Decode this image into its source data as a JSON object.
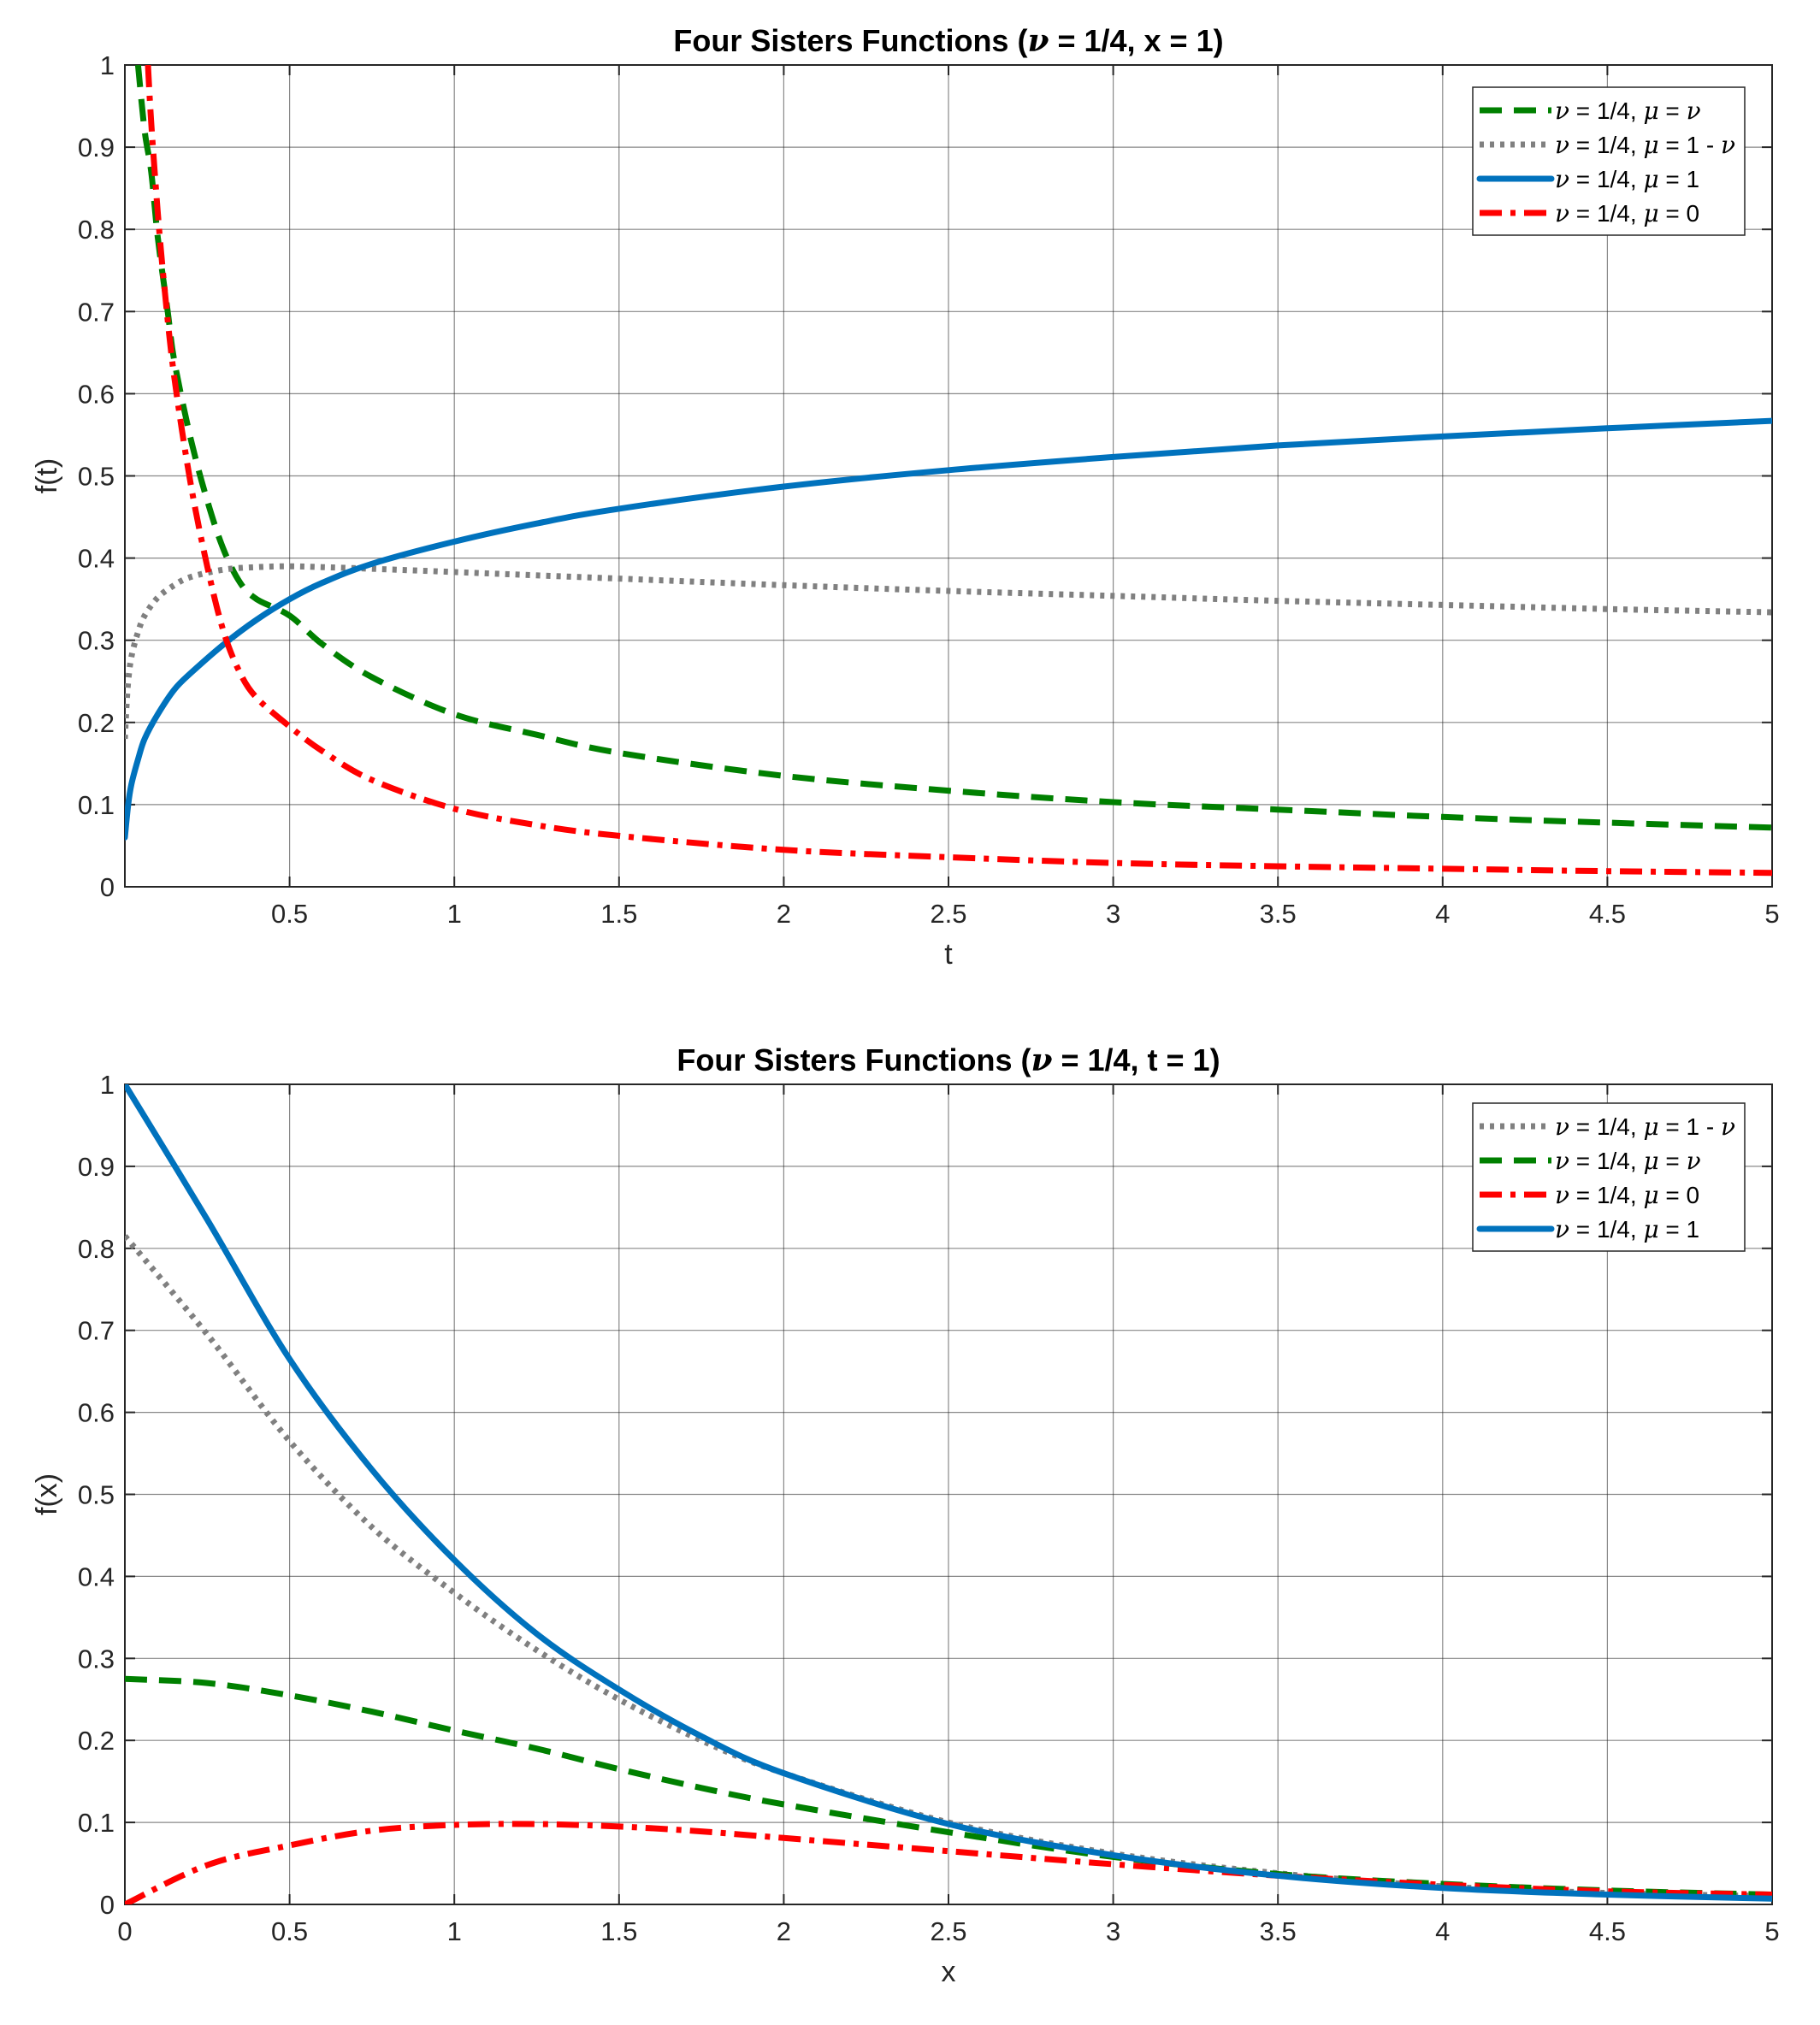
{
  "chart_data": [
    {
      "type": "line",
      "title_prefix": "Four Sisters Functions (",
      "title_nu": "ν",
      "title_suffix": " = 1/4, x = 1)",
      "xlabel": "t",
      "ylabel": "f(t)",
      "xlim": [
        0,
        5
      ],
      "ylim": [
        0,
        1
      ],
      "xticks": [
        "0.5",
        "1",
        "1.5",
        "2",
        "2.5",
        "3",
        "3.5",
        "4",
        "4.5",
        "5"
      ],
      "xtick_values": [
        0.5,
        1,
        1.5,
        2,
        2.5,
        3,
        3.5,
        4,
        4.5,
        5
      ],
      "yticks": [
        "0",
        "0.1",
        "0.2",
        "0.3",
        "0.4",
        "0.5",
        "0.6",
        "0.7",
        "0.8",
        "0.9",
        "1"
      ],
      "ytick_values": [
        0,
        0.1,
        0.2,
        0.3,
        0.4,
        0.5,
        0.6,
        0.7,
        0.8,
        0.9,
        1
      ],
      "grid": true,
      "legend_position": "top-right",
      "series": [
        {
          "key": "mu-nu",
          "legend": [
            "ν",
            " = 1/4, ",
            "μ",
            " = ",
            "ν"
          ],
          "color": "#008000",
          "style": "dashed",
          "x": [
            0.04,
            0.06,
            0.08,
            0.1,
            0.13,
            0.15,
            0.2,
            0.25,
            0.3,
            0.35,
            0.4,
            0.5,
            0.6,
            0.75,
            1,
            1.25,
            1.5,
            2,
            2.5,
            3,
            3.5,
            4,
            4.5,
            5
          ],
          "y": [
            1.0,
            0.92,
            0.87,
            0.79,
            0.7,
            0.64,
            0.545,
            0.47,
            0.41,
            0.37,
            0.35,
            0.33,
            0.295,
            0.255,
            0.21,
            0.185,
            0.163,
            0.135,
            0.117,
            0.103,
            0.094,
            0.085,
            0.078,
            0.072
          ]
        },
        {
          "key": "mu-1-nu",
          "legend": [
            "ν",
            " = 1/4, ",
            "μ",
            " = 1 - ",
            "ν"
          ],
          "color": "#808080",
          "style": "dotted",
          "x": [
            0,
            0.005,
            0.01,
            0.02,
            0.04,
            0.06,
            0.1,
            0.15,
            0.2,
            0.3,
            0.4,
            0.5,
            0.6,
            0.75,
            1,
            1.5,
            2,
            2.5,
            3,
            3.5,
            4,
            4.5,
            5
          ],
          "y": [
            0.18,
            0.22,
            0.25,
            0.28,
            0.31,
            0.33,
            0.352,
            0.367,
            0.377,
            0.386,
            0.389,
            0.39,
            0.389,
            0.387,
            0.383,
            0.375,
            0.367,
            0.36,
            0.354,
            0.348,
            0.343,
            0.338,
            0.334
          ]
        },
        {
          "key": "mu-1",
          "legend": [
            "ν",
            " = 1/4, ",
            "μ",
            " = 1"
          ],
          "color": "#0072bd",
          "style": "solid",
          "x": [
            0,
            0.01,
            0.02,
            0.04,
            0.06,
            0.1,
            0.15,
            0.2,
            0.3,
            0.4,
            0.5,
            0.6,
            0.75,
            1,
            1.25,
            1.5,
            2,
            2.5,
            3,
            3.5,
            4,
            4.5,
            5
          ],
          "y": [
            0.06,
            0.1,
            0.125,
            0.155,
            0.18,
            0.21,
            0.24,
            0.26,
            0.295,
            0.325,
            0.35,
            0.37,
            0.393,
            0.42,
            0.442,
            0.46,
            0.487,
            0.507,
            0.523,
            0.537,
            0.548,
            0.558,
            0.567
          ]
        },
        {
          "key": "mu-0",
          "legend": [
            "ν",
            " = 1/4, ",
            "μ",
            " = 0"
          ],
          "color": "#ff0000",
          "style": "dashdot",
          "x": [
            0.07,
            0.08,
            0.1,
            0.12,
            0.15,
            0.2,
            0.25,
            0.3,
            0.35,
            0.4,
            0.5,
            0.6,
            0.75,
            1,
            1.25,
            1.5,
            2,
            2.5,
            3,
            3.5,
            4,
            4.5,
            5
          ],
          "y": [
            1.0,
            0.93,
            0.82,
            0.73,
            0.62,
            0.49,
            0.39,
            0.31,
            0.26,
            0.23,
            0.195,
            0.165,
            0.13,
            0.095,
            0.075,
            0.062,
            0.045,
            0.036,
            0.029,
            0.025,
            0.022,
            0.019,
            0.017
          ]
        }
      ]
    },
    {
      "type": "line",
      "title_prefix": "Four Sisters Functions (",
      "title_nu": "ν",
      "title_suffix": " = 1/4, t = 1)",
      "xlabel": "x",
      "ylabel": "f(x)",
      "xlim": [
        0,
        5
      ],
      "ylim": [
        0,
        1
      ],
      "xticks": [
        "0",
        "0.5",
        "1",
        "1.5",
        "2",
        "2.5",
        "3",
        "3.5",
        "4",
        "4.5",
        "5"
      ],
      "xtick_values": [
        0,
        0.5,
        1,
        1.5,
        2,
        2.5,
        3,
        3.5,
        4,
        4.5,
        5
      ],
      "yticks": [
        "0",
        "0.1",
        "0.2",
        "0.3",
        "0.4",
        "0.5",
        "0.6",
        "0.7",
        "0.8",
        "0.9",
        "1"
      ],
      "ytick_values": [
        0,
        0.1,
        0.2,
        0.3,
        0.4,
        0.5,
        0.6,
        0.7,
        0.8,
        0.9,
        1
      ],
      "grid": true,
      "legend_position": "top-right",
      "series": [
        {
          "key": "mu-1-nu",
          "legend": [
            "ν",
            " = 1/4, ",
            "μ",
            " = 1 - ",
            "ν"
          ],
          "color": "#808080",
          "style": "dotted",
          "x": [
            0,
            0.25,
            0.5,
            0.75,
            1,
            1.25,
            1.5,
            1.75,
            2,
            2.5,
            3,
            3.5,
            4,
            4.5,
            5
          ],
          "y": [
            0.815,
            0.695,
            0.565,
            0.46,
            0.38,
            0.31,
            0.25,
            0.2,
            0.16,
            0.1,
            0.062,
            0.038,
            0.022,
            0.014,
            0.01
          ]
        },
        {
          "key": "mu-nu",
          "legend": [
            "ν",
            " = 1/4, ",
            "μ",
            " =  ",
            "ν"
          ],
          "color": "#008000",
          "style": "dashed",
          "x": [
            0,
            0.25,
            0.5,
            0.75,
            1,
            1.25,
            1.5,
            1.75,
            2,
            2.5,
            3,
            3.5,
            4,
            4.5,
            5
          ],
          "y": [
            0.275,
            0.27,
            0.255,
            0.235,
            0.212,
            0.19,
            0.165,
            0.142,
            0.122,
            0.088,
            0.058,
            0.037,
            0.025,
            0.017,
            0.012
          ]
        },
        {
          "key": "mu-0",
          "legend": [
            "ν",
            " = 1/4, ",
            "μ",
            " = 0"
          ],
          "color": "#ff0000",
          "style": "dashdot",
          "x": [
            0,
            0.25,
            0.5,
            0.75,
            1,
            1.25,
            1.5,
            1.75,
            2,
            2.5,
            3,
            3.5,
            4,
            4.5,
            5
          ],
          "y": [
            0,
            0.048,
            0.072,
            0.09,
            0.097,
            0.098,
            0.095,
            0.089,
            0.081,
            0.065,
            0.049,
            0.035,
            0.024,
            0.016,
            0.012
          ]
        },
        {
          "key": "mu-1",
          "legend": [
            "ν",
            " = 1/4, ",
            "μ",
            " = 1"
          ],
          "color": "#0072bd",
          "style": "solid",
          "x": [
            0,
            0.25,
            0.5,
            0.75,
            1,
            1.25,
            1.5,
            1.75,
            2,
            2.5,
            3,
            3.5,
            4,
            4.5,
            5
          ],
          "y": [
            1.0,
            0.835,
            0.665,
            0.53,
            0.42,
            0.33,
            0.262,
            0.205,
            0.16,
            0.098,
            0.06,
            0.035,
            0.02,
            0.012,
            0.007
          ]
        }
      ]
    }
  ]
}
